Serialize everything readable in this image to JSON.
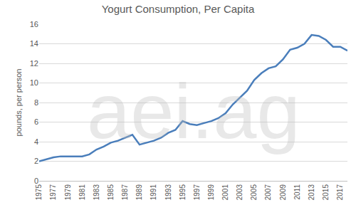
{
  "chart_data": {
    "type": "line",
    "title": "Yogurt Consumption, Per Capita",
    "y_label": "pounds, per person",
    "annotations": [
      "aei.ag"
    ],
    "x": [
      1975,
      1976,
      1977,
      1978,
      1979,
      1980,
      1981,
      1982,
      1983,
      1984,
      1985,
      1986,
      1987,
      1988,
      1989,
      1990,
      1991,
      1992,
      1993,
      1994,
      1995,
      1996,
      1997,
      1998,
      1999,
      2000,
      2001,
      2002,
      2003,
      2004,
      2005,
      2006,
      2007,
      2008,
      2009,
      2010,
      2011,
      2012,
      2013,
      2014,
      2015,
      2016,
      2017,
      2018
    ],
    "values": [
      2.0,
      2.2,
      2.4,
      2.5,
      2.5,
      2.55,
      2.5,
      2.7,
      3.2,
      3.5,
      3.9,
      4.1,
      4.4,
      4.7,
      3.7,
      3.9,
      4.1,
      4.4,
      4.9,
      5.2,
      6.1,
      5.8,
      5.7,
      5.9,
      6.1,
      6.4,
      6.9,
      7.8,
      8.5,
      9.2,
      10.3,
      11.0,
      11.5,
      11.7,
      12.4,
      13.4,
      13.6,
      14.0,
      14.9,
      14.8,
      14.4,
      13.7,
      13.7,
      13.3
    ],
    "color": "#4a7ebb",
    "xlim": [
      1975,
      2018
    ],
    "xticks": [
      1975,
      1977,
      1979,
      1981,
      1983,
      1985,
      1987,
      1989,
      1991,
      1993,
      1995,
      1997,
      1999,
      2001,
      2003,
      2005,
      2007,
      2009,
      2011,
      2013,
      2015,
      2017
    ],
    "ylim": [
      0,
      16
    ],
    "yticks": [
      0,
      2,
      4,
      6,
      8,
      10,
      12,
      14,
      16
    ],
    "grid": true
  }
}
